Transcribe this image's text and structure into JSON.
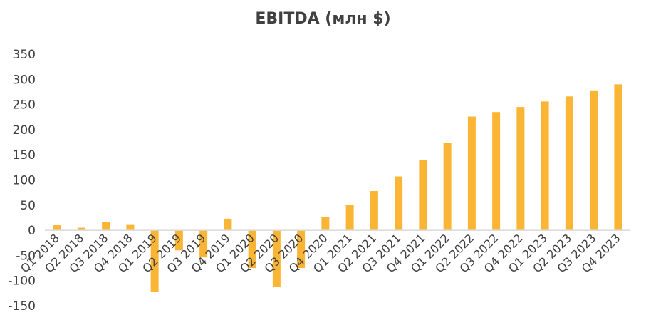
{
  "colors": {
    "bar": "#FBB534",
    "axis": "#d9d9d9",
    "text": "#404040"
  },
  "chart_data": {
    "type": "bar",
    "title": "EBITDA (млн $)",
    "xlabel": "",
    "ylabel": "",
    "ylim": [
      -150,
      350
    ],
    "yticks": [
      -150,
      -100,
      -50,
      0,
      50,
      100,
      150,
      200,
      250,
      300,
      350
    ],
    "grid": false,
    "legend": "none",
    "categories": [
      "Q1 2018",
      "Q2 2018",
      "Q3 2018",
      "Q4 2018",
      "Q1 2019",
      "Q2 2019",
      "Q3 2019",
      "Q4 2019",
      "Q1 2020",
      "Q2 2020",
      "Q3 2020",
      "Q4 2020",
      "Q1 2021",
      "Q2 2021",
      "Q3 2021",
      "Q4 2021",
      "Q1 2022",
      "Q2 2022",
      "Q3 2022",
      "Q4 2022",
      "Q1 2023",
      "Q2 2023",
      "Q3 2023",
      "Q4 2023"
    ],
    "values": [
      10,
      5,
      16,
      12,
      -122,
      -40,
      -54,
      23,
      -75,
      -113,
      -75,
      26,
      50,
      78,
      107,
      140,
      173,
      226,
      235,
      245,
      256,
      266,
      278,
      290
    ]
  }
}
